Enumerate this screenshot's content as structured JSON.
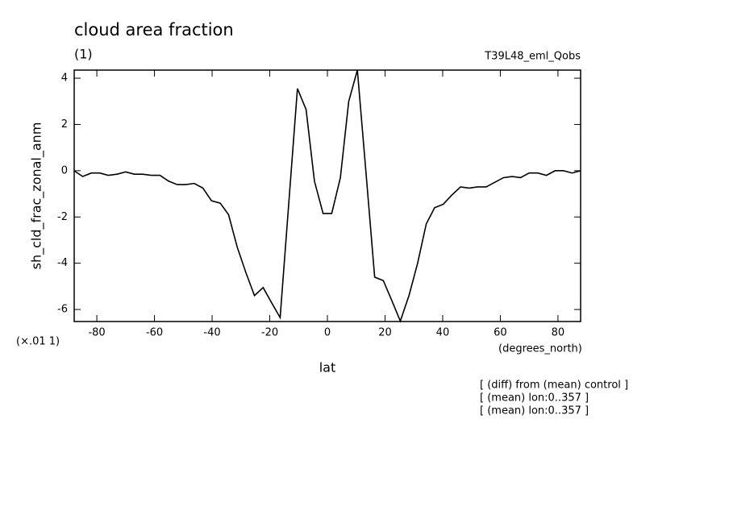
{
  "chart_data": {
    "type": "line",
    "title": "cloud area fraction",
    "subtitle": "(1)",
    "run_label": "T39L48_eml_Qobs",
    "y_label": "sh_cld_frac_zonal_anm",
    "y_scale_label": "(×.01 1)",
    "x_label": "lat",
    "x_units": "(degrees_north)",
    "notes": [
      "[ (diff) from (mean) control ]",
      "[ (mean) lon:0..357 ]",
      "[ (mean) lon:0..357 ]"
    ],
    "color": "#000000",
    "xlim": [
      -87.86,
      87.86
    ],
    "ylim": [
      -6.52,
      4.35
    ],
    "xticks": [
      -80,
      -60,
      -40,
      -20,
      0,
      20,
      40,
      60,
      80
    ],
    "yticks": [
      -6,
      -4,
      -2,
      0,
      2,
      4
    ],
    "x": [
      -87.9,
      -84.9,
      -81.9,
      -79.0,
      -76.0,
      -73.0,
      -70.0,
      -67.0,
      -64.1,
      -61.1,
      -58.1,
      -55.1,
      -52.1,
      -49.2,
      -46.2,
      -43.2,
      -40.2,
      -37.2,
      -34.3,
      -31.3,
      -28.3,
      -25.3,
      -22.3,
      -19.4,
      -16.4,
      -13.4,
      -10.4,
      -7.4,
      -4.5,
      -1.5,
      1.5,
      4.5,
      7.4,
      10.4,
      13.4,
      16.4,
      19.4,
      22.3,
      25.3,
      28.3,
      31.3,
      34.3,
      37.2,
      40.2,
      43.2,
      46.2,
      49.2,
      52.1,
      55.1,
      58.1,
      61.1,
      64.1,
      67.0,
      70.0,
      73.0,
      76.0,
      79.0,
      81.9,
      84.9,
      87.9
    ],
    "values": [
      0,
      -0.25,
      -0.1,
      -0.1,
      -0.2,
      -0.15,
      -0.05,
      -0.15,
      -0.15,
      -0.2,
      -0.2,
      -0.45,
      -0.6,
      -0.6,
      -0.55,
      -0.75,
      -1.3,
      -1.4,
      -1.9,
      -3.3,
      -4.4,
      -5.4,
      -5.05,
      -5.7,
      -6.35,
      -1.4,
      3.55,
      2.65,
      -0.45,
      -1.85,
      -1.85,
      -0.3,
      3.0,
      4.35,
      -0.1,
      -4.6,
      -4.75,
      -5.6,
      -6.5,
      -5.4,
      -4.0,
      -2.3,
      -1.6,
      -1.45,
      -1.05,
      -0.7,
      -0.75,
      -0.7,
      -0.7,
      -0.5,
      -0.3,
      -0.25,
      -0.3,
      -0.1,
      -0.1,
      -0.2,
      0,
      0,
      -0.1,
      0
    ]
  }
}
